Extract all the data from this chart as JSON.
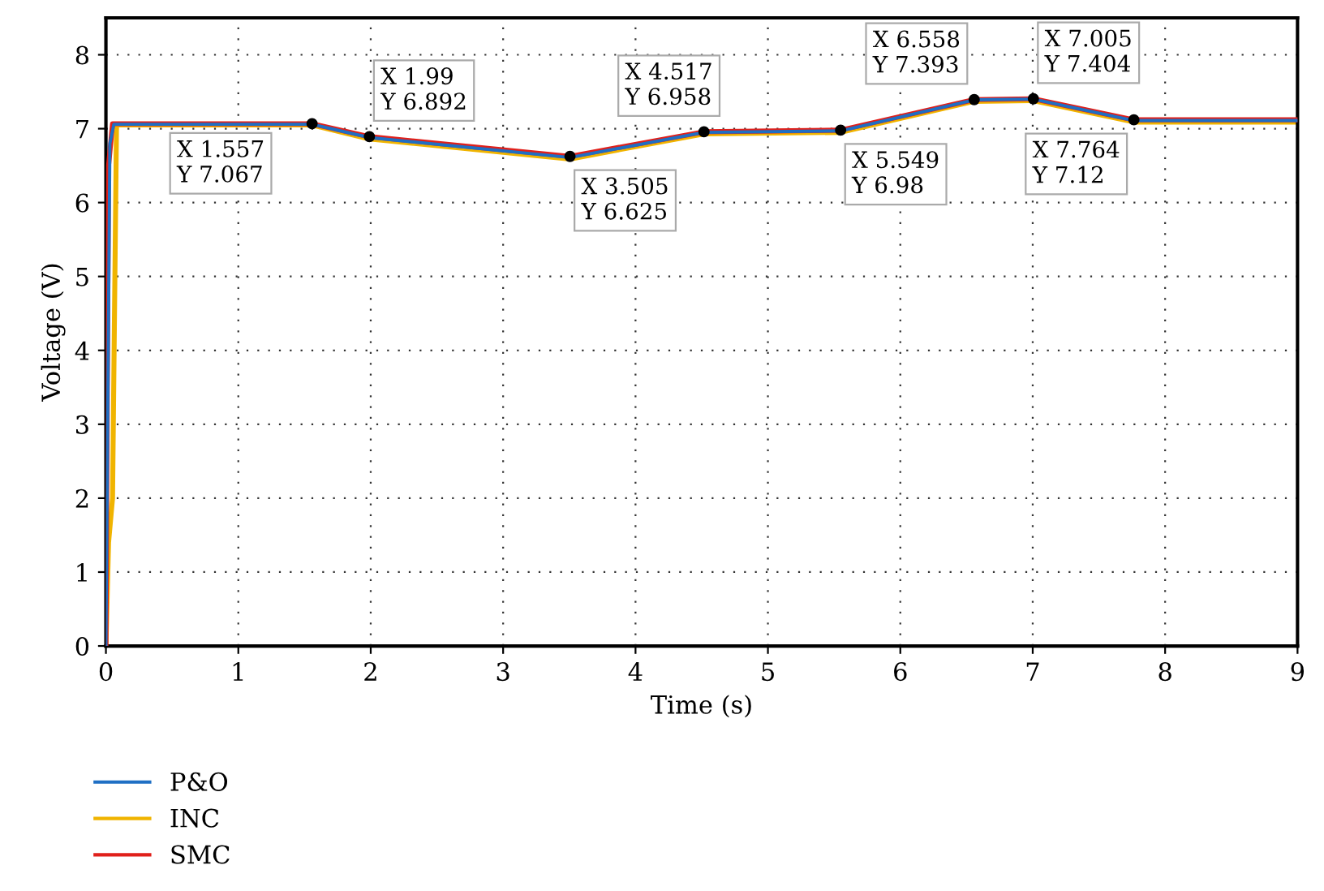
{
  "chart_data": {
    "type": "line",
    "xlabel": "Time (s)",
    "ylabel": "Voltage (V)",
    "xlim": [
      0,
      9
    ],
    "ylim": [
      0,
      8.5
    ],
    "xticks": [
      0,
      1,
      2,
      3,
      4,
      5,
      6,
      7,
      8,
      9
    ],
    "yticks": [
      0,
      1,
      2,
      3,
      4,
      5,
      6,
      7,
      8
    ],
    "grid": true,
    "legend": "bottom left",
    "line_style": "solid",
    "series": [
      {
        "name": "P&O",
        "color": "#1f6fc4",
        "x": [
          0,
          0.03,
          0.06,
          1.557,
          1.99,
          3.505,
          4.517,
          5.549,
          6.558,
          7.005,
          7.764,
          9
        ],
        "values": [
          0,
          6.8,
          7.06,
          7.06,
          6.88,
          6.61,
          6.95,
          6.97,
          7.39,
          7.4,
          7.11,
          7.11
        ]
      },
      {
        "name": "INC",
        "color": "#f0b400",
        "x": [
          0,
          0.02,
          0.05,
          0.08,
          1.557,
          1.99,
          3.505,
          4.517,
          5.549,
          6.558,
          7.005,
          7.764,
          9
        ],
        "values": [
          0,
          1.4,
          2.0,
          7.05,
          7.05,
          6.86,
          6.59,
          6.93,
          6.95,
          7.37,
          7.38,
          7.09,
          7.09
        ]
      },
      {
        "name": "SMC",
        "color": "#e0201b",
        "x": [
          0,
          0.02,
          0.05,
          1.557,
          1.99,
          3.505,
          4.517,
          5.549,
          6.558,
          7.005,
          7.764,
          9
        ],
        "values": [
          0,
          6.5,
          7.067,
          7.067,
          6.892,
          6.625,
          6.958,
          6.98,
          7.393,
          7.404,
          7.12,
          7.12
        ]
      }
    ],
    "annotations": [
      {
        "text": "X 1.557\nY 7.067",
        "x": 1.557,
        "y": 7.067
      },
      {
        "text": "X 1.99\nY 6.892",
        "x": 1.99,
        "y": 6.892
      },
      {
        "text": "X 3.505\nY 6.625",
        "x": 3.505,
        "y": 6.625
      },
      {
        "text": "X 4.517\nY 6.958",
        "x": 4.517,
        "y": 6.958
      },
      {
        "text": "X 5.549\nY 6.98",
        "x": 5.549,
        "y": 6.98
      },
      {
        "text": "X 6.558\nY 7.393",
        "x": 6.558,
        "y": 7.393
      },
      {
        "text": "X 7.005\nY 7.404",
        "x": 7.005,
        "y": 7.404
      },
      {
        "text": "X 7.764\nY 7.12",
        "x": 7.764,
        "y": 7.12
      }
    ]
  }
}
